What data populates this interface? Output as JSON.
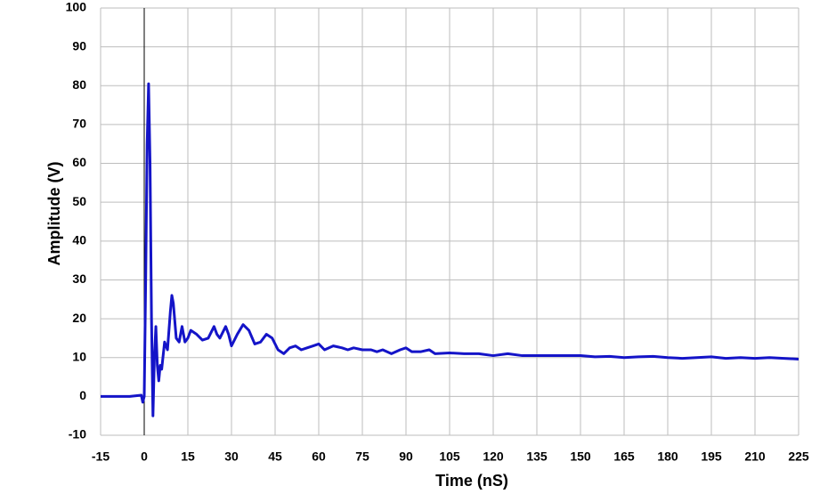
{
  "chart_data": {
    "type": "line",
    "x_label": "Time (nS)",
    "y_label": "Amplitude (V)",
    "x": [
      -15,
      -10,
      -5,
      -1,
      -0.5,
      0,
      0.5,
      1,
      1.5,
      2,
      2.5,
      3,
      3.5,
      4,
      4.5,
      5,
      5.5,
      6,
      7,
      8,
      9,
      9.5,
      10,
      11,
      12,
      13,
      14,
      15,
      16,
      18,
      20,
      22,
      24,
      25,
      26,
      28,
      29,
      30,
      32,
      34,
      36,
      38,
      40,
      42,
      44,
      46,
      48,
      50,
      52,
      54,
      56,
      58,
      60,
      62,
      65,
      68,
      70,
      72,
      75,
      78,
      80,
      82,
      85,
      88,
      90,
      92,
      95,
      98,
      100,
      105,
      110,
      115,
      120,
      125,
      130,
      135,
      140,
      145,
      150,
      155,
      160,
      165,
      170,
      175,
      180,
      185,
      190,
      195,
      200,
      205,
      210,
      215,
      220,
      225
    ],
    "values": [
      0,
      0,
      0,
      0.3,
      -1.5,
      0,
      30,
      65,
      80.5,
      60,
      20,
      -5,
      10,
      18,
      8,
      4,
      8,
      7,
      14,
      12,
      22,
      26,
      24,
      15,
      14,
      18,
      14,
      15,
      17,
      16,
      14.5,
      15,
      18,
      16,
      15,
      18,
      16,
      13,
      16,
      18.5,
      17,
      13.5,
      14,
      16,
      15,
      12,
      11,
      12.5,
      13,
      12,
      12.5,
      13,
      13.5,
      12,
      13,
      12.5,
      12,
      12.5,
      12,
      12,
      11.5,
      12,
      11,
      12,
      12.5,
      11.5,
      11.5,
      12,
      11,
      11.2,
      11,
      11,
      10.5,
      11,
      10.5,
      10.5,
      10.5,
      10.5,
      10.5,
      10.2,
      10.3,
      10,
      10.2,
      10.3,
      10,
      9.8,
      10,
      10.2,
      9.8,
      10,
      9.8,
      10,
      9.8,
      9.6
    ],
    "color": "#1414c8",
    "xlim": [
      -15,
      225
    ],
    "xticks": [
      -15,
      0,
      15,
      30,
      45,
      60,
      75,
      90,
      105,
      120,
      135,
      150,
      165,
      180,
      195,
      210,
      225
    ],
    "ylim": [
      -10,
      100
    ],
    "yticks": [
      -10,
      0,
      10,
      20,
      30,
      40,
      50,
      60,
      70,
      80,
      90,
      100
    ],
    "grid": true
  }
}
